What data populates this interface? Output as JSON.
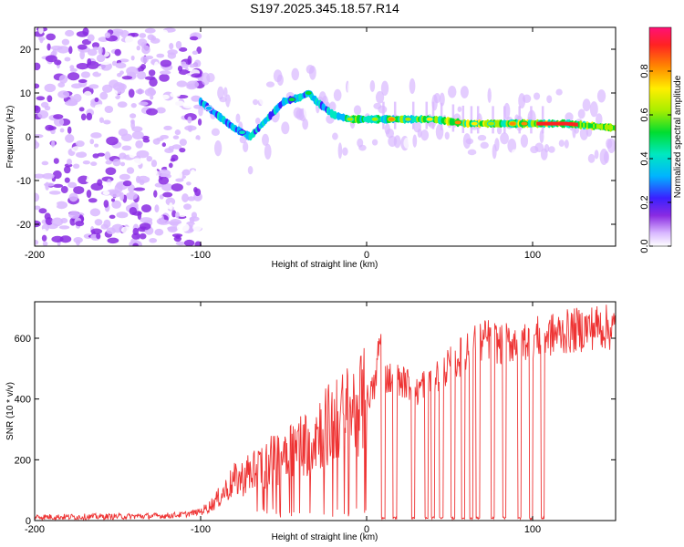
{
  "title": "S197.2025.345.18.57.R14",
  "chart_data": [
    {
      "type": "heatmap",
      "name": "spectrogram",
      "xlabel": "Height of straight line (km)",
      "ylabel": "Frequency (Hz)",
      "xlim": [
        -200,
        150
      ],
      "ylim": [
        -25,
        25
      ],
      "x_ticks": [
        "-200",
        "-100",
        "0",
        "100"
      ],
      "x_tick_values": [
        -200,
        -100,
        0,
        100
      ],
      "y_ticks": [
        "20",
        "10",
        "0",
        "-10",
        "-20"
      ],
      "y_tick_values": [
        20,
        10,
        0,
        -10,
        -20
      ],
      "colorbar": {
        "label": "Normalized spectral amplitude",
        "range": [
          0,
          1
        ],
        "ticks": [
          "0.0",
          "0.2",
          "0.4",
          "0.6",
          "0.8"
        ],
        "tick_values": [
          0.0,
          0.2,
          0.4,
          0.6,
          0.8
        ]
      },
      "noise_region_km": [
        -200,
        -100
      ],
      "dominant_line": {
        "x": [
          -100,
          -90,
          -80,
          -70,
          -60,
          -50,
          -40,
          -35,
          -30,
          -20,
          -10,
          0,
          20,
          40,
          60,
          80,
          100,
          120,
          150
        ],
        "freq_hz": [
          8,
          5,
          2,
          0,
          4,
          8,
          9,
          10,
          8,
          5,
          4,
          4,
          4,
          4,
          3,
          3,
          3,
          3,
          2
        ]
      }
    },
    {
      "type": "line",
      "name": "snr",
      "xlabel": "Height of straight line (km)",
      "ylabel": "SNR (10 * v/v)",
      "xlim": [
        -200,
        150
      ],
      "ylim": [
        0,
        720
      ],
      "x_ticks": [
        "-200",
        "-100",
        "0",
        "100"
      ],
      "x_tick_values": [
        -200,
        -100,
        0,
        100
      ],
      "y_ticks": [
        "0",
        "200",
        "400",
        "600"
      ],
      "y_tick_values": [
        0,
        200,
        400,
        600
      ],
      "color": "#ee3333",
      "series": [
        {
          "name": "SNR",
          "x": [
            -200,
            -180,
            -160,
            -140,
            -120,
            -110,
            -100,
            -95,
            -90,
            -85,
            -80,
            -75,
            -70,
            -65,
            -60,
            -55,
            -50,
            -45,
            -40,
            -35,
            -30,
            -25,
            -20,
            -15,
            -10,
            -5,
            0,
            5,
            8,
            10,
            12,
            15,
            20,
            25,
            30,
            35,
            40,
            45,
            50,
            55,
            60,
            65,
            70,
            75,
            80,
            90,
            100,
            110,
            120,
            130,
            140,
            150
          ],
          "y": [
            12,
            12,
            13,
            14,
            16,
            20,
            30,
            45,
            70,
            100,
            130,
            140,
            160,
            170,
            190,
            200,
            230,
            240,
            250,
            260,
            290,
            310,
            320,
            340,
            360,
            380,
            400,
            440,
            600,
            520,
            470,
            470,
            460,
            450,
            420,
            460,
            470,
            490,
            510,
            530,
            560,
            580,
            590,
            600,
            580,
            590,
            600,
            610,
            620,
            630,
            640,
            630
          ]
        }
      ],
      "dropouts_km": [
        10,
        17,
        28,
        36,
        40,
        45,
        52,
        58,
        63,
        67,
        76,
        83,
        92,
        99,
        106
      ]
    }
  ]
}
